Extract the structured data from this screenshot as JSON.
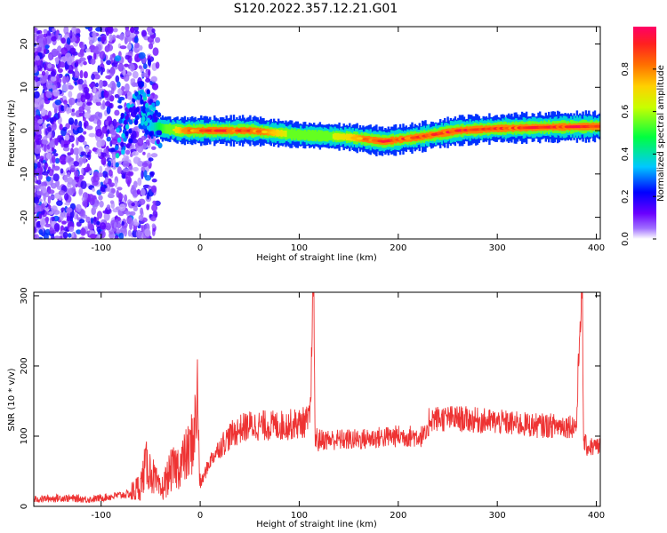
{
  "title": "S120.2022.357.12.21.G01",
  "chart_data": [
    {
      "type": "heatmap",
      "title": "S120.2022.357.12.21.G01",
      "xlabel": "Height of straight line (km)",
      "ylabel": "Frequency (Hz)",
      "xlim": [
        -168,
        404
      ],
      "ylim": [
        -25,
        24
      ],
      "xticks": [
        -100,
        0,
        100,
        200,
        300,
        400
      ],
      "yticks": [
        -20,
        -10,
        0,
        10,
        20
      ],
      "grid": false,
      "colorbar": {
        "label": "Normalized spectral amplitude",
        "range": [
          0,
          1
        ],
        "ticks": [
          0.0,
          0.2,
          0.4,
          0.6,
          0.8
        ],
        "colors": [
          "#ffffff",
          "#7a00ff",
          "#0000ff",
          "#00d0ff",
          "#00ff00",
          "#ffff00",
          "#ff8000",
          "#ff0050"
        ]
      },
      "ridge": {
        "x": [
          -60,
          -50,
          -40,
          -30,
          -20,
          0,
          50,
          100,
          150,
          185,
          220,
          260,
          300,
          350,
          404
        ],
        "frequency": [
          3,
          1,
          0.5,
          0.3,
          0,
          0,
          0,
          -1,
          -1.5,
          -2.5,
          -1.5,
          0,
          0.5,
          0.8,
          1
        ],
        "amplitude": [
          0.3,
          0.35,
          0.5,
          0.6,
          0.75,
          0.9,
          0.9,
          0.55,
          0.7,
          0.95,
          0.9,
          0.95,
          0.9,
          0.95,
          0.95
        ]
      }
    },
    {
      "type": "line",
      "xlabel": "Height of straight line (km)",
      "ylabel": "SNR (10 * v/v)",
      "xlim": [
        -168,
        404
      ],
      "ylim": [
        0,
        305
      ],
      "xticks": [
        -100,
        0,
        100,
        200,
        300,
        400
      ],
      "yticks": [
        0,
        100,
        200,
        300
      ],
      "grid": false,
      "color": "#ee3333",
      "series": [
        {
          "x": [
            -168,
            -140,
            -110,
            -90,
            -70,
            -60,
            -55,
            -50,
            -40,
            -30,
            -20,
            -10,
            -5,
            -3,
            0,
            10,
            20,
            30,
            40,
            50,
            60,
            80,
            100,
            110,
            112,
            113,
            114,
            115,
            116,
            120,
            140,
            160,
            180,
            200,
            230,
            231,
            260,
            300,
            340,
            380,
            384,
            385,
            386,
            387,
            390,
            404
          ],
          "y": [
            10,
            12,
            10,
            14,
            18,
            30,
            60,
            50,
            20,
            50,
            60,
            80,
            115,
            160,
            30,
            65,
            85,
            100,
            110,
            115,
            115,
            115,
            118,
            122,
            150,
            285,
            290,
            280,
            95,
            95,
            95,
            95,
            98,
            100,
            100,
            125,
            125,
            120,
            115,
            115,
            285,
            290,
            280,
            95,
            85,
            85
          ]
        }
      ]
    }
  ]
}
